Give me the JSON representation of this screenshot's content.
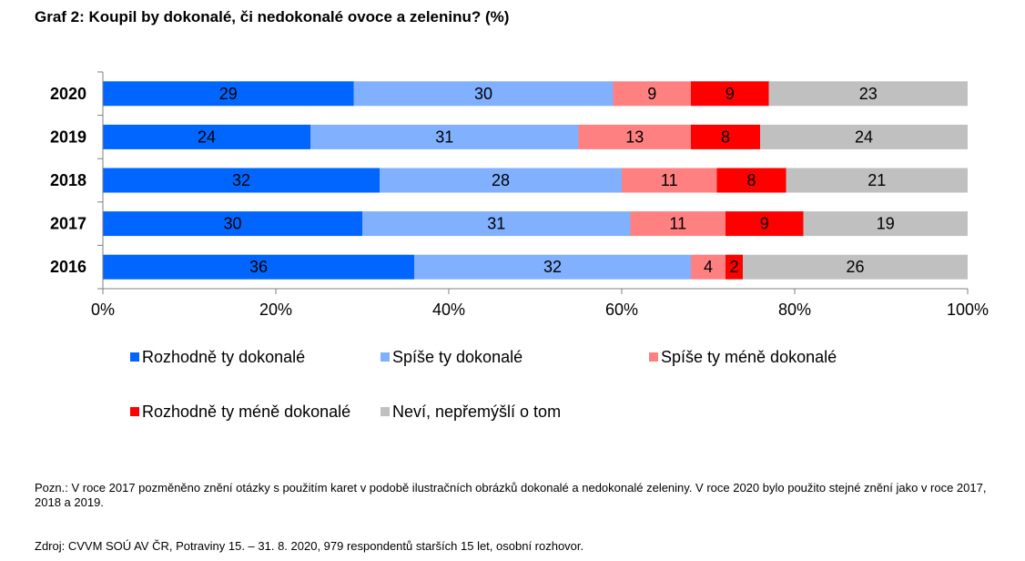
{
  "title": "Graf 2: Koupil by dokonalé, či nedokonalé ovoce a zeleninu? (%)",
  "chart_data": {
    "type": "bar",
    "orientation": "horizontal",
    "stacked": "100%",
    "categories": [
      "2020",
      "2019",
      "2018",
      "2017",
      "2016"
    ],
    "series": [
      {
        "name": "Rozhodně ty dokonalé",
        "color": "#0066FF",
        "values": [
          29,
          24,
          32,
          30,
          36
        ]
      },
      {
        "name": "Spíše ty dokonalé",
        "color": "#80B0FF",
        "values": [
          30,
          31,
          28,
          31,
          32
        ]
      },
      {
        "name": "Spíše ty méně dokonalé",
        "color": "#FF8080",
        "values": [
          9,
          13,
          11,
          11,
          4
        ]
      },
      {
        "name": "Rozhodně ty méně dokonalé",
        "color": "#FF0000",
        "values": [
          9,
          8,
          8,
          9,
          2
        ]
      },
      {
        "name": "Neví, nepřemýšlí o tom",
        "color": "#C0C0C0",
        "values": [
          23,
          24,
          21,
          19,
          26
        ]
      }
    ],
    "xlim": [
      0,
      100
    ],
    "x_ticks": [
      "0%",
      "20%",
      "40%",
      "60%",
      "80%",
      "100%"
    ],
    "grid": false,
    "legend_position": "bottom"
  },
  "note": "Pozn.: V roce 2017 pozměněno znění otázky s použitím karet v podobě ilustračních obrázků dokonalé a nedokonalé zeleniny. V roce 2020 bylo použito stejné znění jako v roce 2017, 2018 a 2019.",
  "source": "Zdroj: CVVM SOÚ AV ČR, Potraviny 15. – 31. 8. 2020, 979 respondentů starších 15 let, osobní rozhovor."
}
